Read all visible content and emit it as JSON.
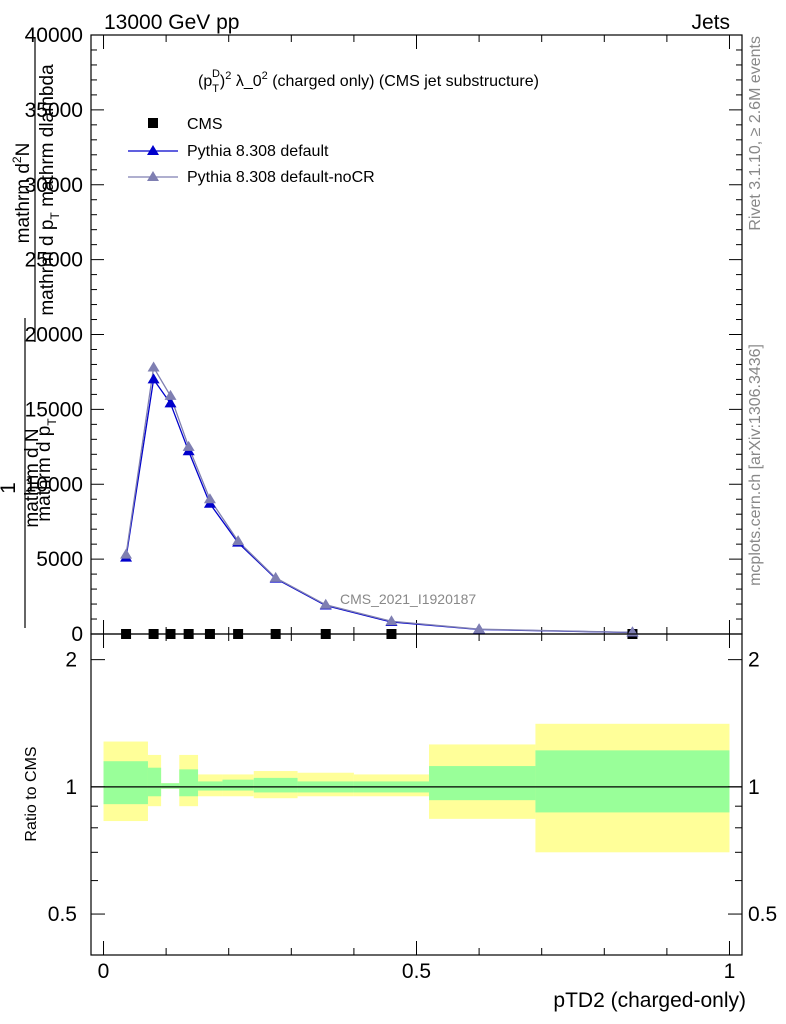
{
  "header": {
    "left": "13000 GeV pp",
    "right": "Jets"
  },
  "side_labels": {
    "rivet": "Rivet 3.1.10, ≥ 2.6M events",
    "mcplots": "mcplots.cern.ch [arXiv:1306.3436]"
  },
  "chart_data": [
    {
      "type": "line",
      "title": "(p_T^D)^2 λ_0^2 (charged only) (CMS jet substructure)",
      "title_parts": {
        "p": "(p",
        "sub": "T",
        "sup": "D",
        "rest": ")",
        "sup2": "2",
        "lam": " λ_0",
        "sup3": "2",
        "tail": " (charged only) (CMS jet substructure)"
      },
      "ylabel_lines": [
        "1",
        "mathrm d N",
        "mathrm d N",
        "mathrm d p_T",
        "mathrm d p_T",
        "mathrm dlambda"
      ],
      "ylabel_parts": {
        "one": "1",
        "num1": "mathrm d",
        "num1_sup": "2",
        "num1_end": "N",
        "den1": "mathrm d p",
        "den1_sub": "T",
        "den1_end": " mathrm dlambda",
        "left1": "mathrm d N",
        "left2": "mathrm d p",
        "left2_sub": "T"
      },
      "yticks": [
        0,
        5000,
        10000,
        15000,
        20000,
        25000,
        30000,
        35000,
        40000
      ],
      "ytick_labels": [
        "0",
        "5000",
        "10000",
        "15000",
        "20000",
        "25000",
        "30000",
        "35000",
        "40000"
      ],
      "ylim": [
        0,
        40000
      ],
      "xlim": [
        -0.02,
        1.02
      ],
      "watermark": "CMS_2021_I1920187",
      "legend": {
        "placement": "top-left",
        "entries": [
          "CMS",
          "Pythia 8.308 default",
          "Pythia 8.308 default-noCR"
        ]
      },
      "series": [
        {
          "name": "CMS",
          "color": "#000000",
          "marker": "square",
          "x": [
            0.036,
            0.08,
            0.107,
            0.136,
            0.17,
            0.215,
            0.275,
            0.355,
            0.46,
            0.845
          ],
          "y": [
            0,
            0,
            0,
            0,
            0,
            0,
            0,
            0,
            0,
            0
          ]
        },
        {
          "name": "Pythia 8.308 default",
          "color": "#0000cc",
          "marker": "triangle",
          "x": [
            0.036,
            0.08,
            0.107,
            0.136,
            0.17,
            0.215,
            0.275,
            0.355,
            0.46,
            0.6,
            0.845
          ],
          "y": [
            5100,
            17000,
            15400,
            12200,
            8700,
            6100,
            3700,
            1900,
            800,
            300,
            100
          ]
        },
        {
          "name": "Pythia 8.308 default-noCR",
          "color": "#7f7fb2",
          "marker": "triangle",
          "x": [
            0.036,
            0.08,
            0.107,
            0.136,
            0.17,
            0.215,
            0.275,
            0.355,
            0.46,
            0.6,
            0.845
          ],
          "y": [
            5300,
            17800,
            15900,
            12500,
            9000,
            6200,
            3750,
            1950,
            850,
            320,
            110
          ]
        }
      ]
    },
    {
      "type": "area",
      "ylabel": "Ratio to CMS",
      "xlabel": "pTD2 (charged-only)",
      "xticks": [
        0,
        0.5,
        1
      ],
      "xtick_labels": [
        "0",
        "0.5",
        "1"
      ],
      "yticks": [
        0.5,
        1,
        2
      ],
      "ytick_labels": [
        "0.5",
        "1",
        "2"
      ],
      "ylim": [
        0.4,
        2.3
      ],
      "ylog": true,
      "bands": {
        "bins": [
          [
            0,
            0.071
          ],
          [
            0.071,
            0.092
          ],
          [
            0.092,
            0.121
          ],
          [
            0.121,
            0.151
          ],
          [
            0.151,
            0.19
          ],
          [
            0.19,
            0.24
          ],
          [
            0.24,
            0.31
          ],
          [
            0.31,
            0.4
          ],
          [
            0.4,
            0.52
          ],
          [
            0.52,
            0.69
          ],
          [
            0.69,
            1.0
          ]
        ],
        "stat_lo": [
          0.91,
          0.95,
          0.99,
          0.95,
          0.98,
          0.98,
          0.97,
          0.97,
          0.97,
          0.93,
          0.87
        ],
        "stat_hi": [
          1.15,
          1.11,
          1.02,
          1.1,
          1.03,
          1.04,
          1.05,
          1.03,
          1.03,
          1.12,
          1.22
        ],
        "tot_lo": [
          0.83,
          0.9,
          0.99,
          0.9,
          0.95,
          0.95,
          0.94,
          0.95,
          0.95,
          0.84,
          0.7
        ],
        "tot_hi": [
          1.28,
          1.19,
          1.02,
          1.19,
          1.07,
          1.07,
          1.09,
          1.08,
          1.07,
          1.26,
          1.41
        ],
        "stat_color": "#99ff99",
        "tot_color": "#ffff99"
      }
    }
  ]
}
